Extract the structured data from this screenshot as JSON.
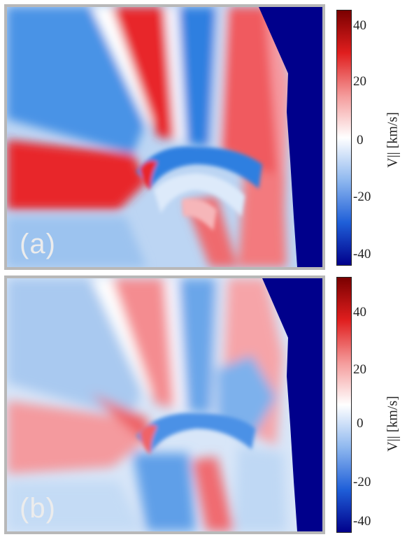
{
  "panels": [
    {
      "label": "(a)",
      "colorbar": {
        "title": "V|| [km/s]",
        "ticks": [
          "40",
          "20",
          "0",
          "-20",
          "-40"
        ],
        "range": [
          -45,
          45
        ],
        "colors": [
          "#00008b",
          "#1f5fd8",
          "#8fb8ef",
          "#ffffff",
          "#f49a9a",
          "#e01e1e",
          "#7a0000"
        ]
      }
    },
    {
      "label": "(b)",
      "colorbar": {
        "title": "V|| [km/s]",
        "ticks": [
          "40",
          "20",
          "0",
          "-20",
          "-40"
        ],
        "range": [
          -45,
          45
        ],
        "colors": [
          "#00008b",
          "#1f5fd8",
          "#8fb8ef",
          "#ffffff",
          "#f49a9a",
          "#e01e1e",
          "#7a0000"
        ]
      }
    }
  ],
  "colors": {
    "masked_region": "#00008b",
    "frame": "#b8b8b8",
    "strong_red": "#e8262b",
    "strong_blue": "#2d7fe0"
  }
}
